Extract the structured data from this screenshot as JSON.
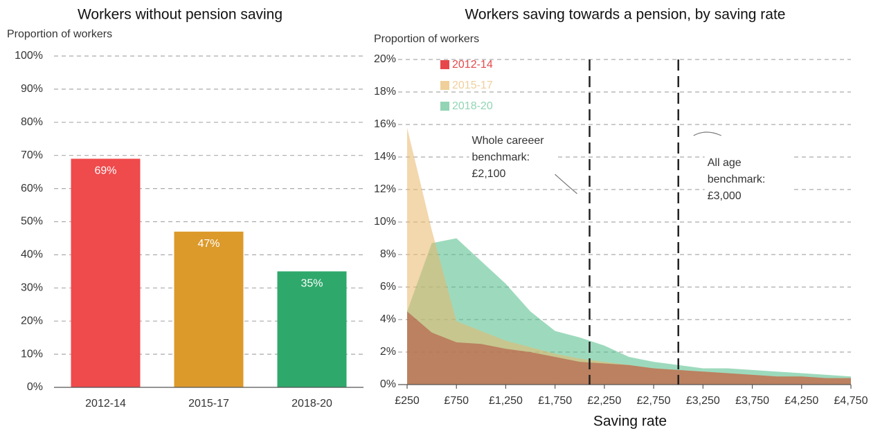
{
  "chart_data": [
    {
      "type": "bar",
      "title": "Workers without pension saving",
      "y_label": "Proportion of workers",
      "categories": [
        "2012-14",
        "2015-17",
        "2018-20"
      ],
      "values": [
        69,
        47,
        35
      ],
      "value_labels": [
        "69%",
        "47%",
        "35%"
      ],
      "colors": [
        "#ef4a4c",
        "#dc9a2b",
        "#2ea86b"
      ],
      "ylim": [
        0,
        100
      ],
      "yticks": [
        {
          "value": 0,
          "label": "0%"
        },
        {
          "value": 10,
          "label": "10%"
        },
        {
          "value": 20,
          "label": "20%"
        },
        {
          "value": 30,
          "label": "30%"
        },
        {
          "value": 40,
          "label": "40%"
        },
        {
          "value": 50,
          "label": "50%"
        },
        {
          "value": 60,
          "label": "60%"
        },
        {
          "value": 70,
          "label": "70%"
        },
        {
          "value": 80,
          "label": "80%"
        },
        {
          "value": 90,
          "label": "90%"
        },
        {
          "value": 100,
          "label": "100%"
        }
      ],
      "grid": true
    },
    {
      "type": "area",
      "title": "Workers saving towards a pension, by saving rate",
      "y_label": "Proportion of workers",
      "x_label": "Saving rate",
      "x": [
        250,
        500,
        750,
        1000,
        1250,
        1500,
        1750,
        2000,
        2250,
        2500,
        2750,
        3000,
        3250,
        3500,
        3750,
        4000,
        4250,
        4500,
        4750
      ],
      "series": [
        {
          "name": "2018-20",
          "color": "#4dbb86",
          "values": [
            4.5,
            8.7,
            9.0,
            7.6,
            6.2,
            4.5,
            3.3,
            2.9,
            2.4,
            1.7,
            1.4,
            1.2,
            1.0,
            1.0,
            0.9,
            0.8,
            0.7,
            0.6,
            0.5
          ]
        },
        {
          "name": "2015-17",
          "color": "#e9b76a",
          "values": [
            15.8,
            9.5,
            3.9,
            3.3,
            2.7,
            2.3,
            1.9,
            1.6,
            1.4,
            1.2,
            1.0,
            0.9,
            0.8,
            0.7,
            0.6,
            0.5,
            0.5,
            0.4,
            0.4
          ]
        },
        {
          "name": "2012-14",
          "color": "#b0483a",
          "values": [
            4.5,
            3.2,
            2.6,
            2.5,
            2.2,
            2.0,
            1.7,
            1.4,
            1.3,
            1.2,
            1.0,
            0.9,
            0.8,
            0.7,
            0.6,
            0.5,
            0.5,
            0.4,
            0.4
          ]
        }
      ],
      "legend_colors": [
        "#e8474a",
        "#f0cf9a",
        "#92d4b4"
      ],
      "legend_order": [
        "2012-14",
        "2015-17",
        "2018-20"
      ],
      "xlim": [
        250,
        4750
      ],
      "xticks": [
        {
          "value": 250,
          "label": "£250"
        },
        {
          "value": 750,
          "label": "£750"
        },
        {
          "value": 1250,
          "label": "£1,250"
        },
        {
          "value": 1750,
          "label": "£1,750"
        },
        {
          "value": 2250,
          "label": "£2,250"
        },
        {
          "value": 2750,
          "label": "£2,750"
        },
        {
          "value": 3250,
          "label": "£3,250"
        },
        {
          "value": 3750,
          "label": "£3,750"
        },
        {
          "value": 4250,
          "label": "£4,250"
        },
        {
          "value": 4750,
          "label": "£4,750"
        }
      ],
      "ylim": [
        0,
        20
      ],
      "yticks": [
        {
          "value": 0,
          "label": "0%"
        },
        {
          "value": 2,
          "label": "2%"
        },
        {
          "value": 4,
          "label": "4%"
        },
        {
          "value": 6,
          "label": "6%"
        },
        {
          "value": 8,
          "label": "8%"
        },
        {
          "value": 10,
          "label": "10%"
        },
        {
          "value": 12,
          "label": "12%"
        },
        {
          "value": 14,
          "label": "14%"
        },
        {
          "value": 16,
          "label": "16%"
        },
        {
          "value": 18,
          "label": "18%"
        },
        {
          "value": 20,
          "label": "20%"
        }
      ],
      "grid": true,
      "benchmarks": [
        {
          "value": 2100,
          "label": [
            "Whole careeer",
            "benchmark:",
            "£2,100"
          ]
        },
        {
          "value": 3000,
          "label": [
            "All age",
            "benchmark:",
            "£3,000"
          ]
        }
      ]
    }
  ]
}
